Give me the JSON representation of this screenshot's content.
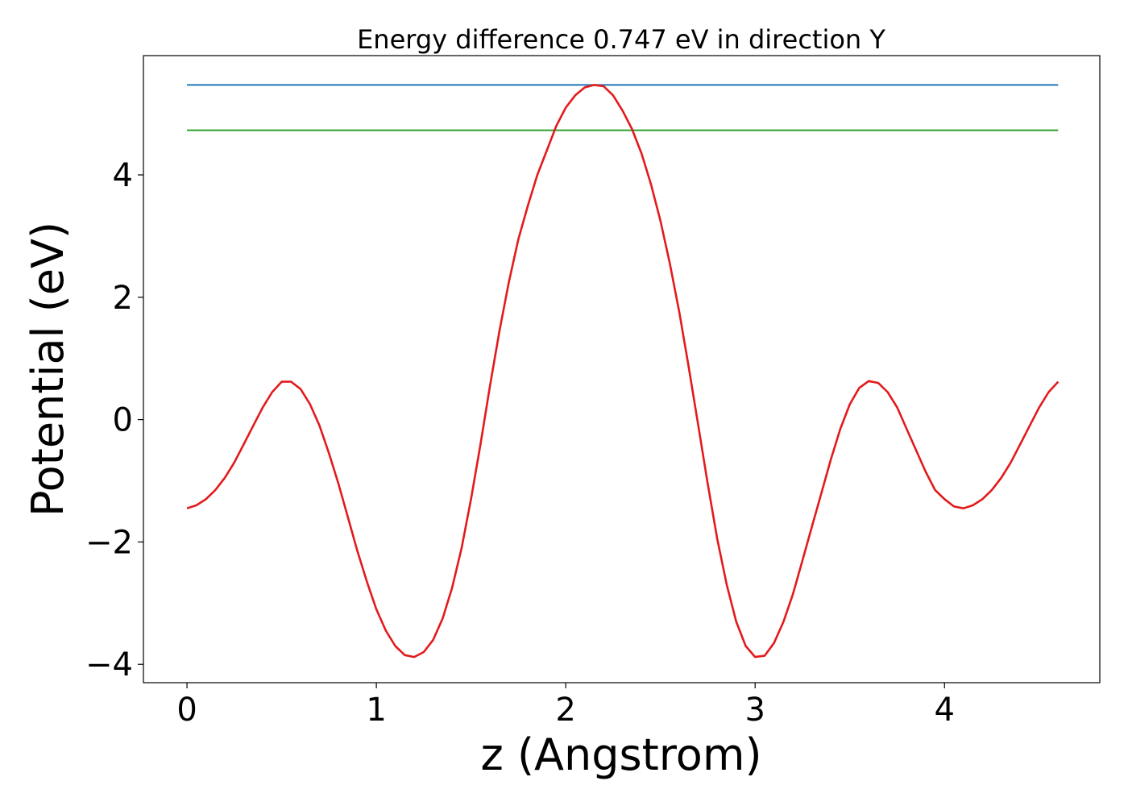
{
  "chart_data": {
    "type": "line",
    "title": "Energy difference 0.747 eV in direction Y",
    "xlabel": "z (Angstrom)",
    "ylabel": "Potential (eV)",
    "xlim": [
      -0.23,
      4.82
    ],
    "ylim": [
      -4.3,
      5.95
    ],
    "xticks": [
      0,
      1,
      2,
      3,
      4
    ],
    "yticks": [
      -4,
      -2,
      0,
      2,
      4
    ],
    "xtick_labels": [
      "0",
      "1",
      "2",
      "3",
      "4"
    ],
    "ytick_labels": [
      "−4",
      "−2",
      "0",
      "2",
      "4"
    ],
    "grid": false,
    "colors": {
      "potential": "#e31a1c",
      "max_line": "#1f77b4",
      "min_line": "#2ca02c"
    },
    "series": [
      {
        "key": "potential",
        "x": [
          0,
          0.05,
          0.1,
          0.15,
          0.2,
          0.25,
          0.3,
          0.35,
          0.4,
          0.45,
          0.5,
          0.55,
          0.6,
          0.65,
          0.7,
          0.75,
          0.8,
          0.85,
          0.9,
          0.95,
          1.0,
          1.05,
          1.1,
          1.15,
          1.2,
          1.25,
          1.3,
          1.35,
          1.4,
          1.45,
          1.5,
          1.55,
          1.6,
          1.65,
          1.7,
          1.75,
          1.8,
          1.85,
          1.9,
          1.95,
          2.0,
          2.05,
          2.1,
          2.15,
          2.2,
          2.25,
          2.3,
          2.35,
          2.4,
          2.45,
          2.5,
          2.55,
          2.6,
          2.65,
          2.7,
          2.75,
          2.8,
          2.85,
          2.9,
          2.95,
          3.0,
          3.05,
          3.1,
          3.15,
          3.2,
          3.25,
          3.3,
          3.35,
          3.4,
          3.45,
          3.5,
          3.55,
          3.6,
          3.65,
          3.7,
          3.75,
          3.8,
          3.85,
          3.9,
          3.95,
          4.0,
          4.05,
          4.1,
          4.15,
          4.2,
          4.25,
          4.3,
          4.35,
          4.4,
          4.45,
          4.5,
          4.55,
          4.6
        ],
        "y": [
          -1.45,
          -1.4,
          -1.3,
          -1.15,
          -0.95,
          -0.7,
          -0.4,
          -0.1,
          0.2,
          0.45,
          0.62,
          0.62,
          0.5,
          0.25,
          -0.1,
          -0.55,
          -1.05,
          -1.6,
          -2.15,
          -2.65,
          -3.1,
          -3.45,
          -3.7,
          -3.85,
          -3.88,
          -3.8,
          -3.6,
          -3.25,
          -2.75,
          -2.1,
          -1.3,
          -0.4,
          0.55,
          1.45,
          2.25,
          2.95,
          3.5,
          4.0,
          4.4,
          4.8,
          5.1,
          5.3,
          5.43,
          5.47,
          5.45,
          5.3,
          5.05,
          4.75,
          4.35,
          3.85,
          3.25,
          2.55,
          1.75,
          0.85,
          -0.1,
          -1.05,
          -1.95,
          -2.7,
          -3.3,
          -3.7,
          -3.88,
          -3.86,
          -3.65,
          -3.3,
          -2.85,
          -2.3,
          -1.75,
          -1.2,
          -0.65,
          -0.15,
          0.25,
          0.52,
          0.63,
          0.6,
          0.45,
          0.2,
          -0.15,
          -0.5,
          -0.85,
          -1.15,
          -1.3,
          -1.42,
          -1.45,
          -1.4,
          -1.3,
          -1.15,
          -0.95,
          -0.7,
          -0.4,
          -0.1,
          0.2,
          0.45,
          0.62
        ]
      }
    ],
    "hlines": [
      {
        "key": "max_line",
        "y": 5.47,
        "x_start": 0,
        "x_end": 4.6
      },
      {
        "key": "min_line",
        "y": 4.73,
        "x_start": 0,
        "x_end": 4.6
      }
    ]
  }
}
